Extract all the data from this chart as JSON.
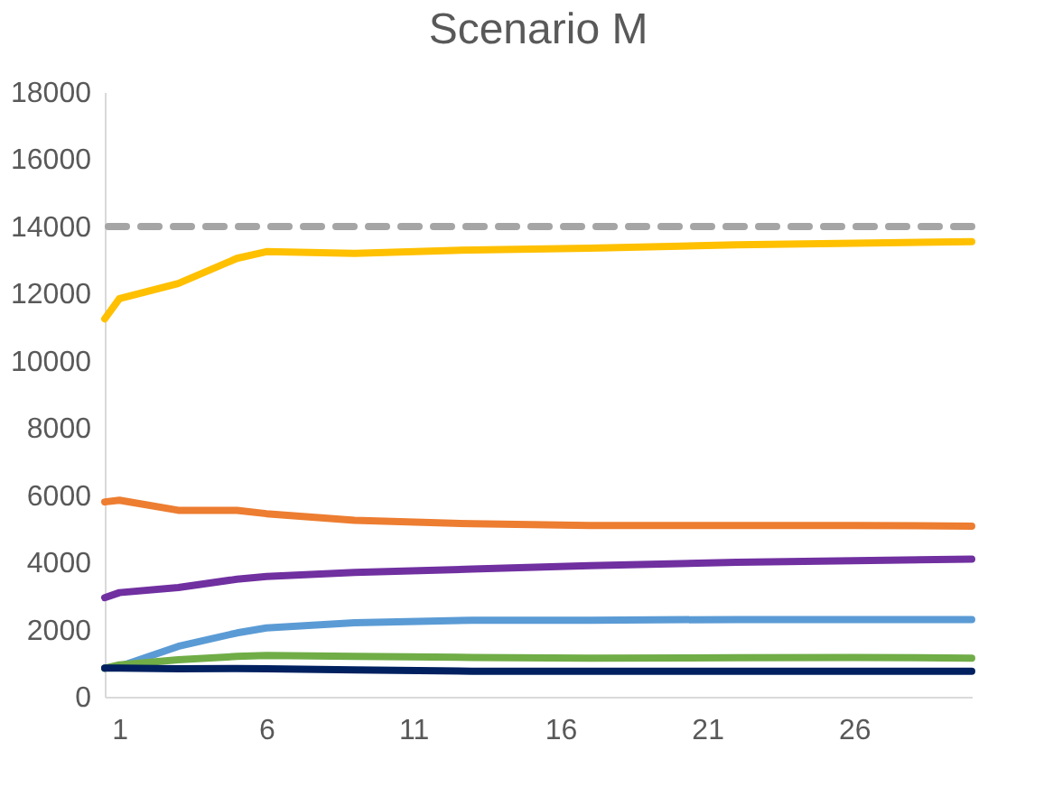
{
  "chart_data": {
    "type": "line",
    "title": "Scenario M",
    "x": [
      0.5,
      1,
      3,
      5,
      6,
      9,
      13,
      17,
      22,
      26,
      30
    ],
    "xlim": [
      0.5,
      30
    ],
    "xticks": [
      1,
      6,
      11,
      16,
      21,
      26
    ],
    "ylim": [
      0,
      18000
    ],
    "yticks": [
      0,
      2000,
      4000,
      6000,
      8000,
      10000,
      12000,
      14000,
      16000,
      18000
    ],
    "grid": false,
    "legend": false,
    "marker": "none",
    "line_style": "solid",
    "series": [
      {
        "color": "#ffc000",
        "values": [
          11250,
          11850,
          12300,
          13050,
          13250,
          13200,
          13300,
          13350,
          13450,
          13500,
          13550
        ]
      },
      {
        "color": "#ed7d31",
        "values": [
          5800,
          5850,
          5550,
          5550,
          5450,
          5250,
          5150,
          5100,
          5100,
          5100,
          5080
        ]
      },
      {
        "color": "#7030a0",
        "values": [
          2950,
          3100,
          3250,
          3500,
          3580,
          3700,
          3800,
          3900,
          4000,
          4050,
          4100
        ]
      },
      {
        "color": "#5b9bd5",
        "values": [
          850,
          900,
          1500,
          1900,
          2050,
          2200,
          2280,
          2280,
          2300,
          2300,
          2300
        ]
      },
      {
        "color": "#70ad47",
        "values": [
          850,
          950,
          1100,
          1200,
          1230,
          1200,
          1170,
          1150,
          1160,
          1170,
          1150
        ]
      },
      {
        "color": "#002060",
        "values": [
          850,
          850,
          830,
          840,
          830,
          800,
          760,
          760,
          760,
          760,
          760
        ]
      }
    ],
    "ref_lines": [
      {
        "axis": "y",
        "value": 14000,
        "color": "#a5a5a5",
        "line_style": "dashed"
      }
    ]
  }
}
